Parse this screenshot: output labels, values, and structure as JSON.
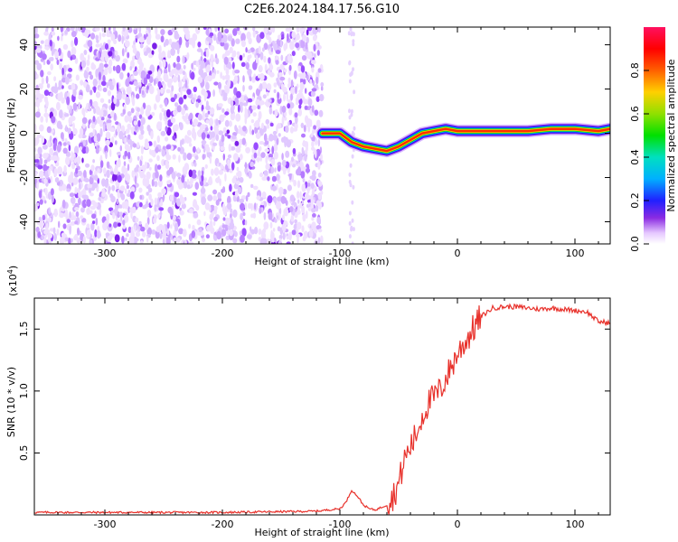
{
  "title": "C2E6.2024.184.17.56.G10",
  "chart_data": [
    {
      "type": "heatmap",
      "xlabel": "Height of straight line (km)",
      "ylabel": "Frequency (Hz)",
      "xlim": [
        -360,
        130
      ],
      "ylim": [
        -50,
        48
      ],
      "x_ticks": [
        -300,
        -200,
        -100,
        0,
        100
      ],
      "y_ticks": [
        -40,
        -20,
        0,
        20,
        40
      ],
      "colorbar": {
        "label": "Normalized spectral amplitude",
        "range": [
          0,
          1
        ],
        "ticks": [
          "0.0",
          "0.2",
          "0.4",
          "0.6",
          "0.8"
        ],
        "tick_values": [
          0,
          0.2,
          0.4,
          0.6,
          0.8
        ]
      },
      "noise_region_x": [
        -360,
        -115
      ],
      "signal_trace": {
        "x": [
          -115,
          -100,
          -90,
          -80,
          -70,
          -60,
          -50,
          -40,
          -30,
          -20,
          -10,
          0,
          20,
          40,
          60,
          80,
          100,
          120,
          130
        ],
        "y": [
          0,
          0,
          -4,
          -6,
          -7,
          -8,
          -6,
          -3,
          0,
          1,
          2,
          1,
          1,
          1,
          1,
          2,
          2,
          1,
          2
        ]
      }
    },
    {
      "type": "line",
      "xlabel": "Height of straight line (km)",
      "ylabel": "SNR (10 * v/v)",
      "y_scale_label": "(x10",
      "y_scale_exp": "4",
      "y_scale_close": ")",
      "xlim": [
        -360,
        130
      ],
      "ylim": [
        0,
        1.75
      ],
      "x_ticks": [
        -300,
        -200,
        -100,
        0,
        100
      ],
      "y_ticks": [
        0.5,
        1.0,
        1.5
      ],
      "y_tick_labels": [
        "0.5",
        "1.0",
        "1.5"
      ],
      "series": [
        {
          "color": "#e8312b",
          "x": [
            -360,
            -300,
            -200,
            -120,
            -100,
            -95,
            -90,
            -85,
            -80,
            -75,
            -70,
            -65,
            -60,
            -55,
            -50,
            -45,
            -40,
            -35,
            -30,
            -25,
            -20,
            -15,
            -10,
            -5,
            0,
            10,
            20,
            30,
            40,
            50,
            60,
            70,
            80,
            90,
            100,
            110,
            120,
            130
          ],
          "y": [
            0.02,
            0.02,
            0.02,
            0.03,
            0.05,
            0.1,
            0.2,
            0.15,
            0.08,
            0.05,
            0.04,
            0.06,
            0.08,
            0.15,
            0.25,
            0.45,
            0.55,
            0.65,
            0.8,
            0.9,
            0.95,
            1.0,
            1.1,
            1.2,
            1.3,
            1.45,
            1.6,
            1.67,
            1.68,
            1.68,
            1.67,
            1.66,
            1.67,
            1.66,
            1.65,
            1.64,
            1.56,
            1.55
          ]
        }
      ]
    }
  ]
}
